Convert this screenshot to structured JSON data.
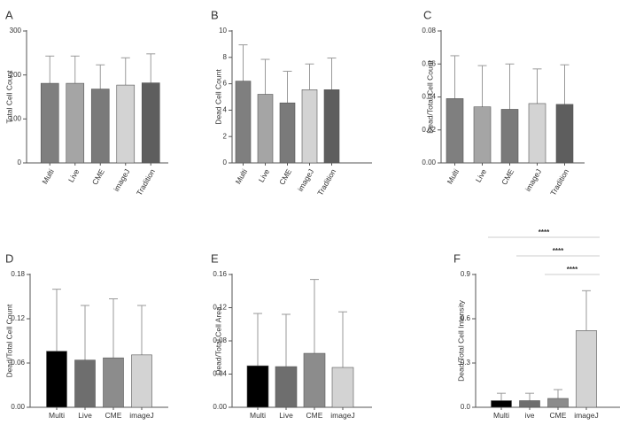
{
  "colors": {
    "axis": "#555555",
    "errorbar": "#9a9a9a",
    "bracket": "#cccccc",
    "bar_outline": "#555555"
  },
  "chart_data": [
    {
      "panel": "A",
      "type": "bar",
      "ylabel": "Total Cell Count",
      "categories": [
        "Multi",
        "Live",
        "CME",
        "imageJ",
        "Tradition"
      ],
      "values": [
        181,
        181,
        168,
        177,
        182
      ],
      "errors": [
        62,
        62,
        55,
        62,
        66
      ],
      "bar_colors": [
        "#7f7f7f",
        "#a5a5a5",
        "#7a7a7a",
        "#d3d3d3",
        "#5e5e5e"
      ],
      "ylim": [
        0,
        300
      ],
      "yticks": [
        "0",
        "100",
        "200",
        "300"
      ],
      "ytick_values": [
        0,
        100,
        200,
        300
      ],
      "label_rotation": "rotated",
      "significance": []
    },
    {
      "panel": "B",
      "type": "bar",
      "ylabel": "Dead Cell Count",
      "categories": [
        "Multi",
        "Live",
        "CME",
        "imageJ",
        "Tradition"
      ],
      "values": [
        6.2,
        5.2,
        4.55,
        5.55,
        5.55
      ],
      "errors": [
        2.75,
        2.65,
        2.4,
        1.95,
        2.4
      ],
      "bar_colors": [
        "#7f7f7f",
        "#a5a5a5",
        "#7a7a7a",
        "#d3d3d3",
        "#5e5e5e"
      ],
      "ylim": [
        0,
        10
      ],
      "yticks": [
        "0",
        "2",
        "4",
        "6",
        "8",
        "10"
      ],
      "ytick_values": [
        0,
        2,
        4,
        6,
        8,
        10
      ],
      "label_rotation": "rotated",
      "significance": []
    },
    {
      "panel": "C",
      "type": "bar",
      "ylabel": "Dead/Total Cell Count",
      "categories": [
        "Multi",
        "Live",
        "CME",
        "imageJ",
        "Tradition"
      ],
      "values": [
        0.039,
        0.034,
        0.0325,
        0.036,
        0.0355
      ],
      "errors": [
        0.026,
        0.025,
        0.0275,
        0.021,
        0.024
      ],
      "bar_colors": [
        "#7f7f7f",
        "#a5a5a5",
        "#7a7a7a",
        "#d3d3d3",
        "#5e5e5e"
      ],
      "ylim": [
        0,
        0.08
      ],
      "yticks": [
        "0.00",
        "0.02",
        "0.04",
        "0.06",
        "0.08"
      ],
      "ytick_values": [
        0,
        0.02,
        0.04,
        0.06,
        0.08
      ],
      "label_rotation": "rotated",
      "significance": []
    },
    {
      "panel": "D",
      "type": "bar",
      "ylabel": "Dead/Total Cell Count",
      "categories": [
        "Multi",
        "Live",
        "CME",
        "imageJ"
      ],
      "values": [
        0.076,
        0.064,
        0.067,
        0.071
      ],
      "errors": [
        0.084,
        0.074,
        0.08,
        0.067
      ],
      "bar_colors": [
        "#000000",
        "#6e6e6e",
        "#8c8c8c",
        "#d3d3d3"
      ],
      "ylim": [
        0,
        0.18
      ],
      "yticks": [
        "0.00",
        "0.06",
        "0.12",
        "0.18"
      ],
      "ytick_values": [
        0,
        0.06,
        0.12,
        0.18
      ],
      "label_rotation": "horizontal",
      "significance": []
    },
    {
      "panel": "E",
      "type": "bar",
      "ylabel": "Dead/Total Cell Area",
      "categories": [
        "Multi",
        "Live",
        "CME",
        "imageJ"
      ],
      "values": [
        0.05,
        0.049,
        0.065,
        0.048
      ],
      "errors": [
        0.063,
        0.063,
        0.089,
        0.067
      ],
      "bar_colors": [
        "#000000",
        "#6e6e6e",
        "#8c8c8c",
        "#d3d3d3"
      ],
      "ylim": [
        0,
        0.16
      ],
      "yticks": [
        "0.00",
        "0.04",
        "0.08",
        "0.12",
        "0.16"
      ],
      "ytick_values": [
        0,
        0.04,
        0.08,
        0.12,
        0.16
      ],
      "label_rotation": "horizontal",
      "significance": []
    },
    {
      "panel": "F",
      "type": "bar",
      "ylabel": "Dead/Total Cell Intensity",
      "categories": [
        "Multi",
        "ive",
        "CME",
        "imageJ"
      ],
      "values": [
        0.045,
        0.045,
        0.06,
        0.52
      ],
      "errors": [
        0.05,
        0.05,
        0.06,
        0.27
      ],
      "bar_colors": [
        "#000000",
        "#6e6e6e",
        "#8c8c8c",
        "#d3d3d3"
      ],
      "ylim": [
        0,
        0.9
      ],
      "yticks": [
        "0.0",
        "0.3",
        "0.6",
        "0.9"
      ],
      "ytick_values": [
        0,
        0.3,
        0.6,
        0.9
      ],
      "label_rotation": "horizontal",
      "significance": [
        {
          "from": 0,
          "to": 3,
          "label": "****"
        },
        {
          "from": 1,
          "to": 3,
          "label": "****"
        },
        {
          "from": 2,
          "to": 3,
          "label": "****"
        }
      ]
    }
  ]
}
